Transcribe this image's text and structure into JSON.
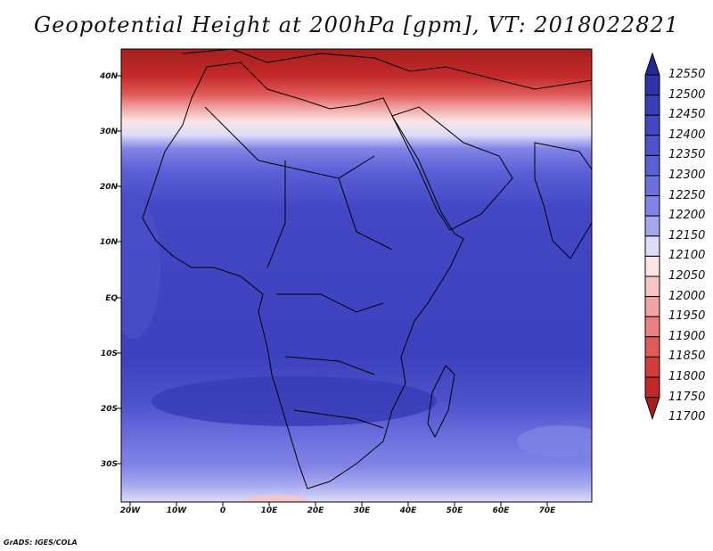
{
  "title": "Geopotential Height at 200hPa [gpm], VT: 2018022821",
  "footer": "GrADS: IGES/COLA",
  "lat_labels": [
    "40N",
    "30N",
    "20N",
    "10N",
    "EQ",
    "10S",
    "20S",
    "30S"
  ],
  "lon_labels": [
    "20W",
    "10W",
    "0",
    "10E",
    "20E",
    "30E",
    "40E",
    "50E",
    "60E",
    "70E"
  ],
  "colorbar": {
    "levels": [
      "12550",
      "12500",
      "12450",
      "12400",
      "12350",
      "12300",
      "12250",
      "12200",
      "12150",
      "12100",
      "12050",
      "12000",
      "11950",
      "11900",
      "11850",
      "11800",
      "11750",
      "11700"
    ],
    "colors": [
      "#232896",
      "#2e33a8",
      "#3a3fb8",
      "#4447c4",
      "#4e52cc",
      "#5b60d6",
      "#6c70de",
      "#8184e6",
      "#a4a6ee",
      "#dcdcf8",
      "#fbe5e5",
      "#f6c5c5",
      "#f0a3a3",
      "#e98080",
      "#e05a5a",
      "#d43b3b",
      "#c22828",
      "#a81d1d"
    ]
  },
  "map": {
    "lat_range": [
      -37,
      45
    ],
    "lon_range": [
      -22,
      80
    ]
  }
}
